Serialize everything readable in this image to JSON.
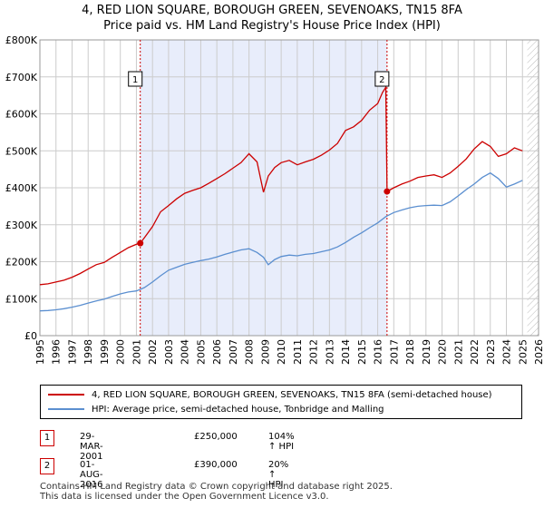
{
  "title_line1": "4, RED LION SQUARE, BOROUGH GREEN, SEVENOAKS, TN15 8FA",
  "title_line2": "Price paid vs. HM Land Registry's House Price Index (HPI)",
  "colors": {
    "property": "#cc0000",
    "hpi": "#5b8fd0",
    "shade": "#e8edfb",
    "marker_line": "#cc0000",
    "grid": "#cccccc"
  },
  "chart_data": {
    "type": "line",
    "y_tick_labels": [
      "£0",
      "£100K",
      "£200K",
      "£300K",
      "£400K",
      "£500K",
      "£600K",
      "£700K",
      "£800K"
    ],
    "y_ticks": [
      0,
      100000,
      200000,
      300000,
      400000,
      500000,
      600000,
      700000,
      800000
    ],
    "ylim": [
      0,
      800000
    ],
    "xlim": [
      1995,
      2026
    ],
    "x_ticks": [
      1995,
      1996,
      1997,
      1998,
      1999,
      2000,
      2001,
      2002,
      2003,
      2004,
      2005,
      2006,
      2007,
      2008,
      2009,
      2010,
      2011,
      2012,
      2013,
      2014,
      2015,
      2016,
      2017,
      2018,
      2019,
      2020,
      2021,
      2022,
      2023,
      2024,
      2025,
      2026
    ],
    "x_tick_labels": [
      "1995",
      "1996",
      "1997",
      "1998",
      "1999",
      "2000",
      "2001",
      "2002",
      "2003",
      "2004",
      "2005",
      "2006",
      "2007",
      "2008",
      "2009",
      "2010",
      "2011",
      "2012",
      "2013",
      "2014",
      "2015",
      "2016",
      "2017",
      "2018",
      "2019",
      "2020",
      "2021",
      "2022",
      "2023",
      "2024",
      "2025",
      "2026"
    ],
    "shaded_range": [
      2001.24,
      2016.58
    ],
    "hatched_from": 2025.3,
    "series": [
      {
        "name": "4, RED LION SQUARE, BOROUGH GREEN, SEVENOAKS, TN15 8FA (semi-detached house)",
        "color": "#cc0000",
        "x": [
          1995.0,
          1995.5,
          1996.0,
          1996.5,
          1997.0,
          1997.5,
          1998.0,
          1998.5,
          1999.0,
          1999.5,
          2000.0,
          2000.5,
          2001.0,
          2001.24,
          2001.5,
          2002.0,
          2002.5,
          2003.0,
          2003.5,
          2004.0,
          2004.5,
          2005.0,
          2005.5,
          2006.0,
          2006.5,
          2007.0,
          2007.5,
          2008.0,
          2008.5,
          2008.9,
          2009.2,
          2009.6,
          2010.0,
          2010.5,
          2011.0,
          2011.5,
          2012.0,
          2012.5,
          2013.0,
          2013.5,
          2014.0,
          2014.5,
          2015.0,
          2015.5,
          2016.0,
          2016.3,
          2016.5,
          2016.58,
          2017.0,
          2017.5,
          2018.0,
          2018.5,
          2019.0,
          2019.5,
          2020.0,
          2020.5,
          2021.0,
          2021.5,
          2022.0,
          2022.5,
          2023.0,
          2023.5,
          2024.0,
          2024.5,
          2025.0
        ],
        "values": [
          138000,
          140000,
          145000,
          150000,
          158000,
          168000,
          180000,
          192000,
          198000,
          212000,
          225000,
          238000,
          247000,
          250000,
          265000,
          295000,
          335000,
          352000,
          370000,
          385000,
          393000,
          400000,
          412000,
          425000,
          438000,
          453000,
          468000,
          492000,
          470000,
          388000,
          432000,
          455000,
          468000,
          474000,
          462000,
          470000,
          477000,
          488000,
          502000,
          520000,
          555000,
          565000,
          582000,
          610000,
          628000,
          658000,
          672000,
          390000,
          400000,
          410000,
          418000,
          428000,
          432000,
          435000,
          428000,
          440000,
          458000,
          478000,
          505000,
          525000,
          512000,
          485000,
          492000,
          508000,
          500000
        ]
      },
      {
        "name": "HPI: Average price, semi-detached house, Tonbridge and Malling",
        "color": "#5b8fd0",
        "x": [
          1995.0,
          1995.5,
          1996.0,
          1996.5,
          1997.0,
          1997.5,
          1998.0,
          1998.5,
          1999.0,
          1999.5,
          2000.0,
          2000.5,
          2001.0,
          2001.5,
          2002.0,
          2002.5,
          2003.0,
          2003.5,
          2004.0,
          2004.5,
          2005.0,
          2005.5,
          2006.0,
          2006.5,
          2007.0,
          2007.5,
          2008.0,
          2008.5,
          2008.9,
          2009.2,
          2009.6,
          2010.0,
          2010.5,
          2011.0,
          2011.5,
          2012.0,
          2012.5,
          2013.0,
          2013.5,
          2014.0,
          2014.5,
          2015.0,
          2015.5,
          2016.0,
          2016.5,
          2017.0,
          2017.5,
          2018.0,
          2018.5,
          2019.0,
          2019.5,
          2020.0,
          2020.5,
          2021.0,
          2021.5,
          2022.0,
          2022.5,
          2023.0,
          2023.5,
          2024.0,
          2024.5,
          2025.0
        ],
        "values": [
          67000,
          68000,
          70000,
          73000,
          77000,
          82000,
          88000,
          94000,
          99000,
          106000,
          113000,
          118000,
          121000,
          130000,
          145000,
          162000,
          177000,
          185000,
          193000,
          198000,
          203000,
          207000,
          213000,
          220000,
          226000,
          232000,
          235000,
          225000,
          212000,
          192000,
          206000,
          214000,
          218000,
          216000,
          220000,
          222000,
          227000,
          232000,
          240000,
          252000,
          266000,
          278000,
          292000,
          305000,
          322000,
          333000,
          340000,
          346000,
          350000,
          352000,
          353000,
          352000,
          362000,
          378000,
          395000,
          410000,
          428000,
          440000,
          425000,
          402000,
          410000,
          420000
        ]
      }
    ],
    "sales": [
      {
        "label": "1",
        "x": 2001.24,
        "value": 250000
      },
      {
        "label": "2",
        "x": 2016.58,
        "value": 390000
      }
    ]
  },
  "legend": {
    "property_label": "4, RED LION SQUARE, BOROUGH GREEN, SEVENOAKS, TN15 8FA (semi-detached house)",
    "hpi_label": "HPI: Average price, semi-detached house, Tonbridge and Malling"
  },
  "transactions": [
    {
      "num": "1",
      "date": "29-MAR-2001",
      "price": "£250,000",
      "hpi": "104% ↑ HPI"
    },
    {
      "num": "2",
      "date": "01-AUG-2016",
      "price": "£390,000",
      "hpi": "20% ↑ HPI"
    }
  ],
  "footer_line1": "Contains HM Land Registry data © Crown copyright and database right 2025.",
  "footer_line2": "This data is licensed under the Open Government Licence v3.0."
}
